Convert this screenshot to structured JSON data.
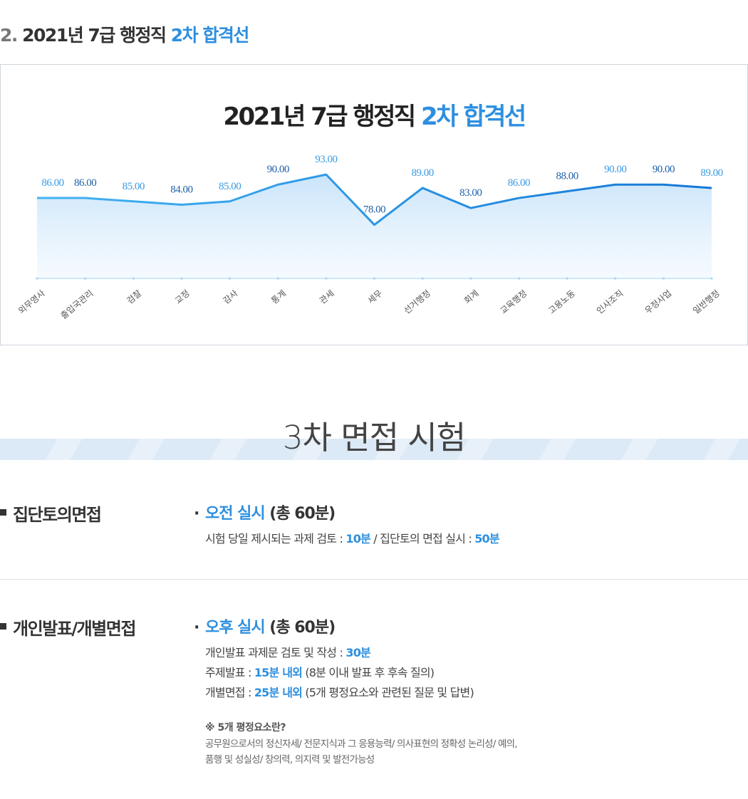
{
  "heading": {
    "number": "2.",
    "text": "2021년 7급 행정직",
    "accent": "2차 합격선"
  },
  "chart_data": {
    "type": "area",
    "title": "2021년 7급 행정직",
    "title_accent": "2차 합격선",
    "categories": [
      "외무영사",
      "출입국관리",
      "검찰",
      "교정",
      "감사",
      "통계",
      "관세",
      "세무",
      "선거행정",
      "회계",
      "교육행정",
      "고용노동",
      "인사조직",
      "우정사업",
      "일반행정"
    ],
    "values": [
      86.0,
      86.0,
      85.0,
      84.0,
      85.0,
      90.0,
      93.0,
      78.0,
      89.0,
      83.0,
      86.0,
      88.0,
      90.0,
      90.0,
      89.0
    ],
    "value_labels": [
      "86.00",
      "86.00",
      "85.00",
      "84.00",
      "85.00",
      "90.00",
      "93.00",
      "78.00",
      "89.00",
      "83.00",
      "86.00",
      "88.00",
      "90.00",
      "90.00",
      "89.00"
    ],
    "ylim": [
      62,
      96
    ],
    "grid": false,
    "legend": "none",
    "colors": {
      "line_start": "#44b3f2",
      "line_end": "#1477d6",
      "fill": "#cfe7fb",
      "label_light": "#3a9be3",
      "label_dark": "#1d5fa8"
    }
  },
  "interview": {
    "title": "3차 면접 시험",
    "group": {
      "label": "집단토의면접",
      "head_accent": "오전 실시",
      "head_rest": "(총 60분)",
      "line_prefix": "시험 당일 제시되는 과제 검토 : ",
      "line_value1": "10분",
      "line_mid": " / 집단토의 면접 실시 : ",
      "line_value2": "50분"
    },
    "individual": {
      "label": "개인발표/개별면접",
      "head_accent": "오후 실시",
      "head_rest": "(총 60분)",
      "lines": [
        {
          "prefix": "개인발표 과제문 검토 및 작성 : ",
          "value": "30분",
          "suffix": ""
        },
        {
          "prefix": "주제발표 : ",
          "value": "15분 내외",
          "suffix": " (8분 이내 발표 후 후속 질의)"
        },
        {
          "prefix": "개별면접 : ",
          "value": "25분 내외",
          "suffix": " (5개 평정요소와 관련된 질문 및 답변)"
        }
      ],
      "note_title": "※ 5개 평정요소란?",
      "note_lines": [
        "공무원으로서의 정신자세/ 전문지식과 그 응용능력/ 의사표현의 정확성 논리성/ 예의,",
        "품행 및 성실성/ 창의력, 의지력 및 발전가능성"
      ]
    }
  }
}
